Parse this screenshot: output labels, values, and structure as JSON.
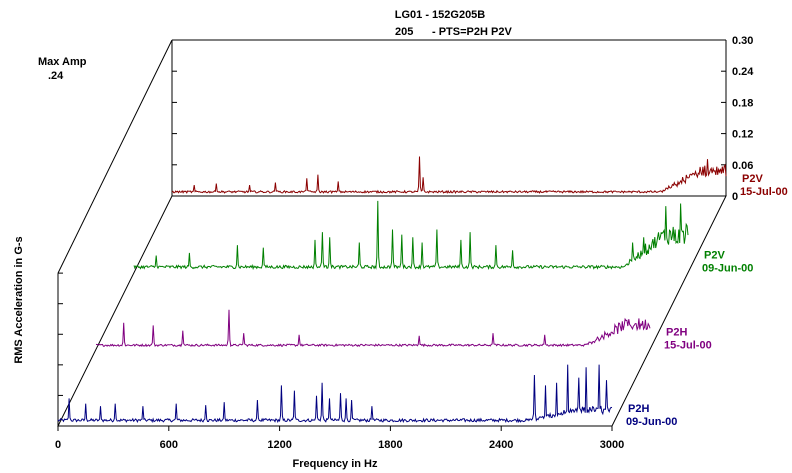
{
  "chart_data": {
    "type": "line",
    "title": "LG01 - 152G205B",
    "subtitle_left": "205",
    "subtitle_right": "- PTS=P2H P2V",
    "max_amp_label": "Max Amp",
    "max_amp_value": ".24",
    "xlabel": "Frequency in Hz",
    "ylabel": "RMS Acceleration in G-s",
    "x_ticks": [
      "0",
      "600",
      "1200",
      "1800",
      "2400",
      "3000"
    ],
    "y_ticks": [
      "0",
      "0.06",
      "0.12",
      "0.18",
      "0.24",
      "0.30"
    ],
    "xlim": [
      0,
      3000
    ],
    "ylim": [
      0,
      0.3
    ],
    "series": [
      {
        "name": "P2H",
        "date": "09-Jun-00",
        "color": "#000080",
        "base": 0.008,
        "noise": 0.006,
        "hump_start": 2550,
        "hump_level": 0.02,
        "peaks": [
          [
            60,
            0.045
          ],
          [
            150,
            0.035
          ],
          [
            230,
            0.03
          ],
          [
            310,
            0.035
          ],
          [
            460,
            0.03
          ],
          [
            640,
            0.035
          ],
          [
            800,
            0.032
          ],
          [
            900,
            0.038
          ],
          [
            1080,
            0.042
          ],
          [
            1210,
            0.07
          ],
          [
            1280,
            0.06
          ],
          [
            1400,
            0.05
          ],
          [
            1430,
            0.075
          ],
          [
            1470,
            0.045
          ],
          [
            1530,
            0.055
          ],
          [
            1560,
            0.045
          ],
          [
            1590,
            0.042
          ],
          [
            1700,
            0.03
          ],
          [
            2580,
            0.09
          ],
          [
            2640,
            0.07
          ],
          [
            2700,
            0.075
          ],
          [
            2760,
            0.11
          ],
          [
            2820,
            0.085
          ],
          [
            2860,
            0.105
          ],
          [
            2930,
            0.11
          ],
          [
            2970,
            0.08
          ]
        ]
      },
      {
        "name": "P2H",
        "date": "15-Jul-00",
        "color": "#800080",
        "base": 0.006,
        "noise": 0.004,
        "hump_start": 2650,
        "hump_level": 0.04,
        "peaks": [
          [
            150,
            0.045
          ],
          [
            310,
            0.04
          ],
          [
            470,
            0.03
          ],
          [
            720,
            0.07
          ],
          [
            800,
            0.025
          ],
          [
            1100,
            0.022
          ],
          [
            1750,
            0.02
          ],
          [
            2150,
            0.025
          ],
          [
            2430,
            0.022
          ]
        ]
      },
      {
        "name": "P2V",
        "date": "09-Jun-00",
        "color": "#008000",
        "base": 0.008,
        "noise": 0.006,
        "hump_start": 2650,
        "hump_level": 0.06,
        "peaks": [
          [
            120,
            0.025
          ],
          [
            300,
            0.03
          ],
          [
            560,
            0.045
          ],
          [
            700,
            0.04
          ],
          [
            980,
            0.055
          ],
          [
            1020,
            0.07
          ],
          [
            1060,
            0.06
          ],
          [
            1220,
            0.05
          ],
          [
            1320,
            0.13
          ],
          [
            1400,
            0.075
          ],
          [
            1450,
            0.065
          ],
          [
            1510,
            0.06
          ],
          [
            1560,
            0.05
          ],
          [
            1640,
            0.075
          ],
          [
            1770,
            0.055
          ],
          [
            1820,
            0.07
          ],
          [
            1960,
            0.045
          ],
          [
            2050,
            0.035
          ],
          [
            2700,
            0.05
          ],
          [
            2760,
            0.06
          ],
          [
            2880,
            0.12
          ],
          [
            2920,
            0.08
          ],
          [
            2960,
            0.125
          ],
          [
            2990,
            0.085
          ]
        ]
      },
      {
        "name": "P2V",
        "date": "15-Jul-00",
        "color": "#8B0000",
        "base": 0.006,
        "noise": 0.004,
        "hump_start": 2650,
        "hump_level": 0.04,
        "peaks": [
          [
            120,
            0.015
          ],
          [
            240,
            0.018
          ],
          [
            420,
            0.015
          ],
          [
            560,
            0.02
          ],
          [
            730,
            0.028
          ],
          [
            790,
            0.035
          ],
          [
            900,
            0.022
          ],
          [
            1340,
            0.07
          ],
          [
            1360,
            0.03
          ],
          [
            2860,
            0.05
          ],
          [
            2900,
            0.065
          ],
          [
            2960,
            0.045
          ]
        ]
      }
    ]
  }
}
